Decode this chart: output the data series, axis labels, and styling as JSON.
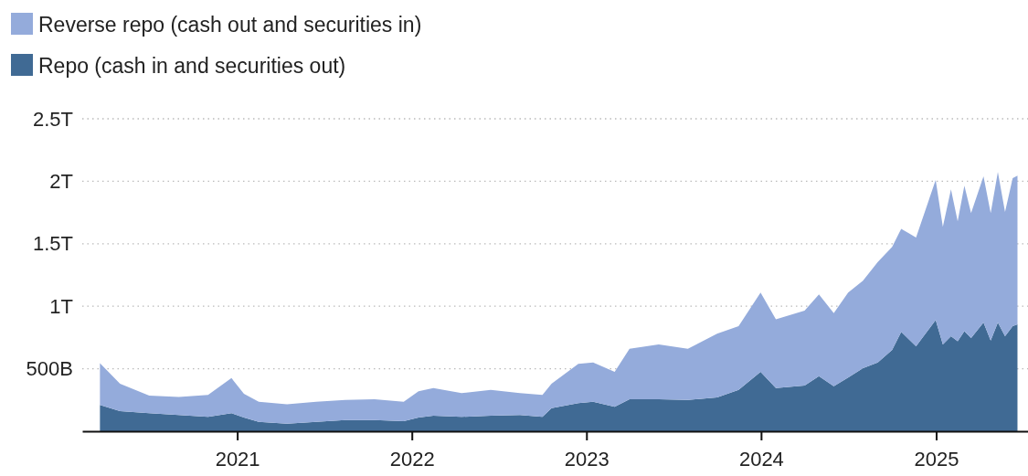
{
  "chart_data": {
    "type": "area",
    "stacked": true,
    "legend": "top left",
    "grid": "y",
    "x": [
      "2020-03-20",
      "2020-05-01",
      "2020-07-01",
      "2020-09-01",
      "2020-11-01",
      "2020-12-20",
      "2021-01-15",
      "2021-02-15",
      "2021-04-15",
      "2021-06-15",
      "2021-08-15",
      "2021-10-15",
      "2021-12-15",
      "2022-01-15",
      "2022-02-15",
      "2022-04-15",
      "2022-06-15",
      "2022-08-15",
      "2022-10-01",
      "2022-10-20",
      "2022-12-15",
      "2023-01-15",
      "2023-03-01",
      "2023-04-01",
      "2023-06-01",
      "2023-08-01",
      "2023-10-01",
      "2023-11-15",
      "2023-12-31",
      "2024-02-01",
      "2024-04-01",
      "2024-05-01",
      "2024-06-01",
      "2024-07-01",
      "2024-08-01",
      "2024-09-01",
      "2024-10-01",
      "2024-10-20",
      "2024-11-20",
      "2024-12-31",
      "2025-01-15",
      "2025-02-01",
      "2025-02-15",
      "2025-03-01",
      "2025-03-15",
      "2025-04-10",
      "2025-04-25",
      "2025-05-10",
      "2025-05-25",
      "2025-06-10",
      "2025-06-20"
    ],
    "series": [
      {
        "name": "Repo (cash in and securities out)",
        "color": "#406a94",
        "values": [
          210000000000.0,
          160000000000.0,
          145000000000.0,
          130000000000.0,
          115000000000.0,
          145000000000.0,
          110000000000.0,
          75000000000.0,
          60000000000.0,
          75000000000.0,
          90000000000.0,
          90000000000.0,
          80000000000.0,
          110000000000.0,
          125000000000.0,
          115000000000.0,
          125000000000.0,
          130000000000.0,
          115000000000.0,
          185000000000.0,
          225000000000.0,
          235000000000.0,
          195000000000.0,
          255000000000.0,
          255000000000.0,
          250000000000.0,
          270000000000.0,
          330000000000.0,
          475000000000.0,
          345000000000.0,
          365000000000.0,
          440000000000.0,
          360000000000.0,
          430000000000.0,
          505000000000.0,
          550000000000.0,
          650000000000.0,
          795000000000.0,
          680000000000.0,
          890000000000.0,
          695000000000.0,
          760000000000.0,
          720000000000.0,
          800000000000.0,
          745000000000.0,
          870000000000.0,
          725000000000.0,
          870000000000.0,
          760000000000.0,
          840000000000.0,
          855000000000.0
        ]
      },
      {
        "name": "Reverse repo (cash out and securities in)",
        "color": "#94abdb",
        "values": [
          335000000000.0,
          220000000000.0,
          140000000000.0,
          145000000000.0,
          175000000000.0,
          280000000000.0,
          190000000000.0,
          160000000000.0,
          155000000000.0,
          160000000000.0,
          160000000000.0,
          165000000000.0,
          155000000000.0,
          210000000000.0,
          220000000000.0,
          190000000000.0,
          205000000000.0,
          175000000000.0,
          175000000000.0,
          195000000000.0,
          315000000000.0,
          315000000000.0,
          280000000000.0,
          405000000000.0,
          440000000000.0,
          410000000000.0,
          510000000000.0,
          510000000000.0,
          635000000000.0,
          550000000000.0,
          600000000000.0,
          655000000000.0,
          585000000000.0,
          680000000000.0,
          700000000000.0,
          805000000000.0,
          825000000000.0,
          825000000000.0,
          870000000000.0,
          1120000000000.0,
          940000000000.0,
          1175000000000.0,
          960000000000.0,
          1165000000000.0,
          1000000000000.0,
          1170000000000.0,
          1020000000000.0,
          1205000000000.0,
          995000000000.0,
          1185000000000.0,
          1190000000000.0
        ]
      }
    ],
    "xlim": [
      "2020-02-12",
      "2025-07-12"
    ],
    "xticks": [
      "2021",
      "2022",
      "2023",
      "2024",
      "2025"
    ],
    "ylim": [
      0,
      2500000000000.0
    ],
    "yticks": [
      {
        "value": 500000000000.0,
        "label": "500B"
      },
      {
        "value": 1000000000000.0,
        "label": "1T"
      },
      {
        "value": 1500000000000.0,
        "label": "1.5T"
      },
      {
        "value": 2000000000000.0,
        "label": "2T"
      },
      {
        "value": 2500000000000.0,
        "label": "2.5T"
      }
    ]
  }
}
